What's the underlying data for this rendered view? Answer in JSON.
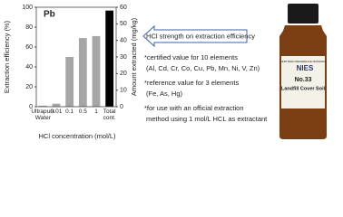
{
  "chart_data": {
    "type": "bar",
    "label": "Pb",
    "x_label": "HCl concentration (mol/L)",
    "y_label": "Extraction efficiency (%)",
    "y2_label": "Amount extracted (mg/kg)",
    "categories": [
      "Ultrapure Water",
      "0.01",
      "0.1",
      "0.5",
      "1",
      "Total cont."
    ],
    "series": [
      {
        "color": "#a6a6a6",
        "values": [
          1,
          3,
          50,
          69,
          71,
          null
        ]
      },
      {
        "color": "#000000",
        "axis": "y2",
        "values": [
          null,
          null,
          null,
          null,
          null,
          58
        ]
      }
    ],
    "ylim": [
      0,
      100
    ],
    "yticks": [
      0,
      20,
      40,
      60,
      80,
      100
    ],
    "y2lim": [
      0,
      60
    ],
    "y2ticks": [
      0,
      10,
      20,
      30,
      40,
      50,
      60
    ],
    "arrow_text": "HCl strength on extraction efficiency",
    "annotations": [
      "*certified value for 10 elements",
      "(Al, Cd, Cr, Co, Cu, Pb, Mn, Ni, V, Zn)",
      "*reference value for 3 elements",
      "(Fe, As, Hg)",
      "*for use with an official extraction",
      "method using 1 mol/L HCL as extractant"
    ]
  },
  "photo": {
    "brand": "NIES",
    "subtitle": "CERTIFIED REFERENCE MATERIAL",
    "number": "No.33",
    "name": "Landfill Cover Soil"
  }
}
